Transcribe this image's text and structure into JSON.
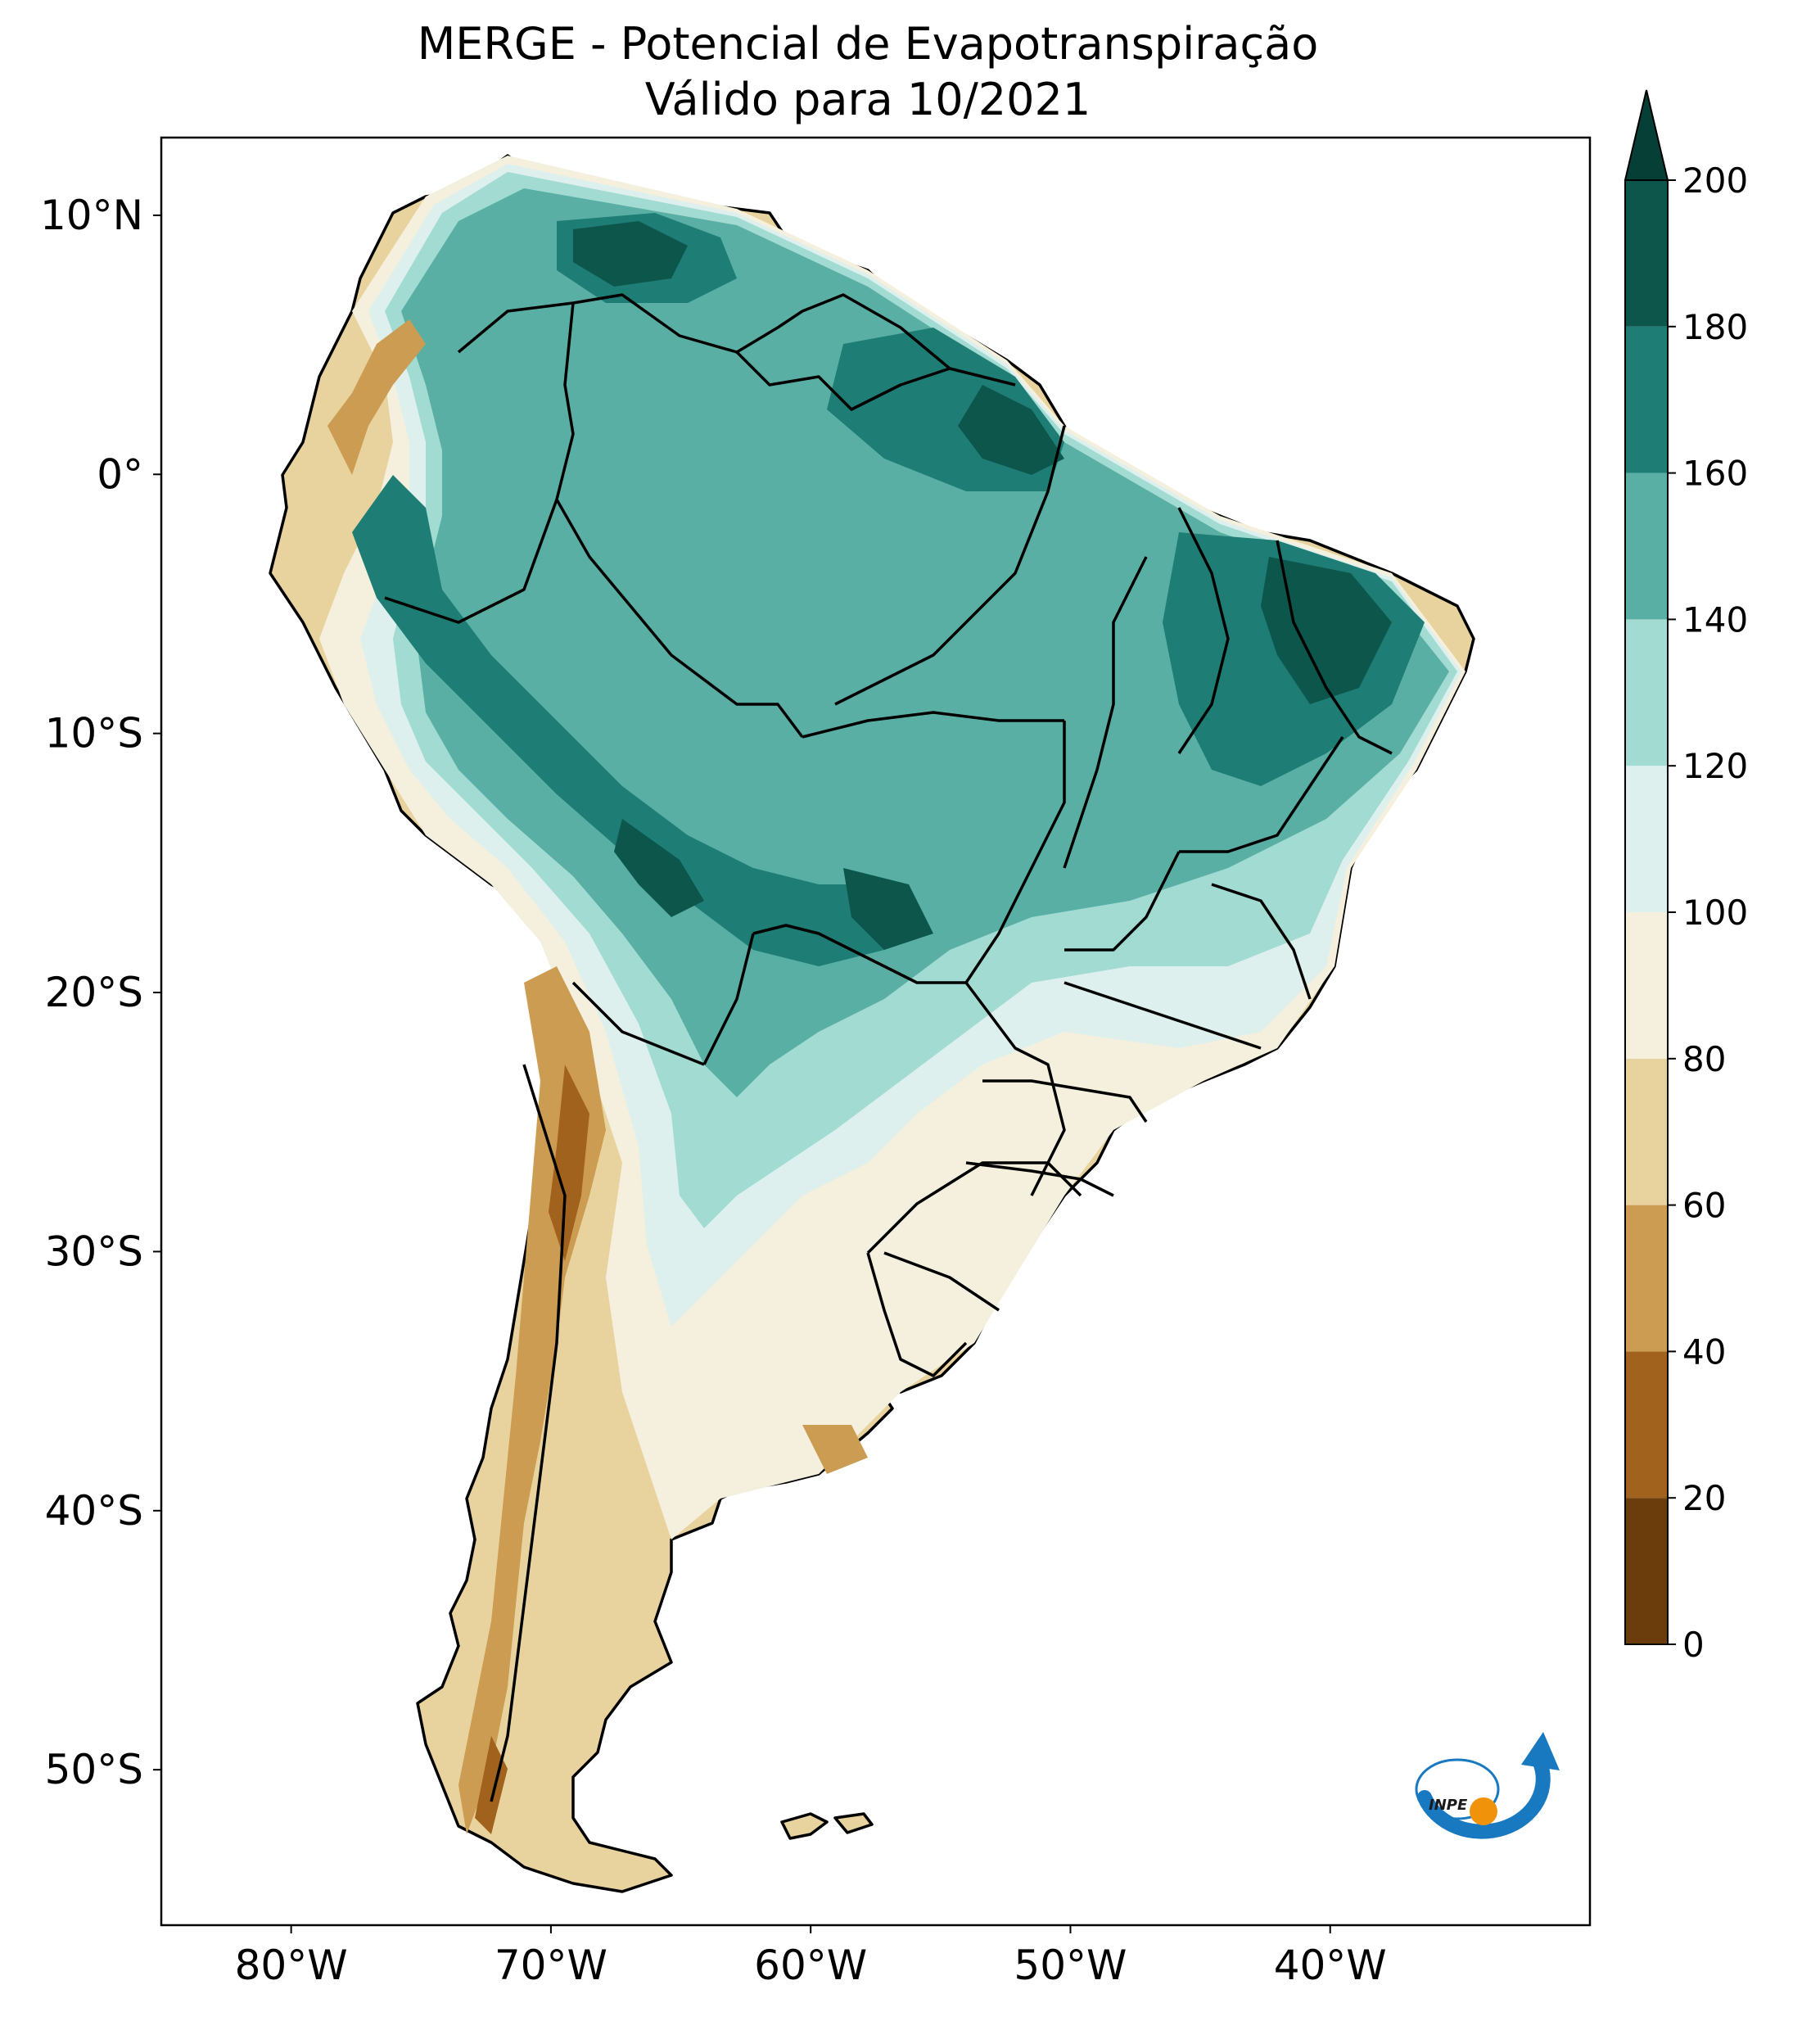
{
  "title": {
    "line1": "MERGE - Potencial de Evapotranspiração",
    "line2": "Válido para 10/2021"
  },
  "map": {
    "lon_range": [
      -85,
      -30
    ],
    "lat_range": [
      -56,
      13
    ],
    "lon_ticks": [
      {
        "value": -80,
        "label": "80°W"
      },
      {
        "value": -70,
        "label": "70°W"
      },
      {
        "value": -60,
        "label": "60°W"
      },
      {
        "value": -50,
        "label": "50°W"
      },
      {
        "value": -40,
        "label": "40°W"
      }
    ],
    "lat_ticks": [
      {
        "value": 10,
        "label": "10°N"
      },
      {
        "value": 0,
        "label": "0°"
      },
      {
        "value": -10,
        "label": "10°S"
      },
      {
        "value": -20,
        "label": "20°S"
      },
      {
        "value": -30,
        "label": "30°S"
      },
      {
        "value": -40,
        "label": "40°S"
      },
      {
        "value": -50,
        "label": "50°S"
      }
    ]
  },
  "colorbar": {
    "levels": [
      0,
      20,
      40,
      60,
      80,
      100,
      120,
      140,
      160,
      180,
      200
    ],
    "labels": [
      "0",
      "20",
      "40",
      "60",
      "80",
      "100",
      "120",
      "140",
      "160",
      "180",
      "200"
    ],
    "colors": [
      "#6b3d0c",
      "#a0621c",
      "#cc9c52",
      "#e8d39e",
      "#f5efdd",
      "#ddf0ed",
      "#a2dbd2",
      "#5aafa5",
      "#1e7d74",
      "#0c564c"
    ],
    "extend_color": "#053f36"
  },
  "logo": {
    "text": "INPE",
    "blue": "#1878c0",
    "orange": "#f0920a"
  }
}
